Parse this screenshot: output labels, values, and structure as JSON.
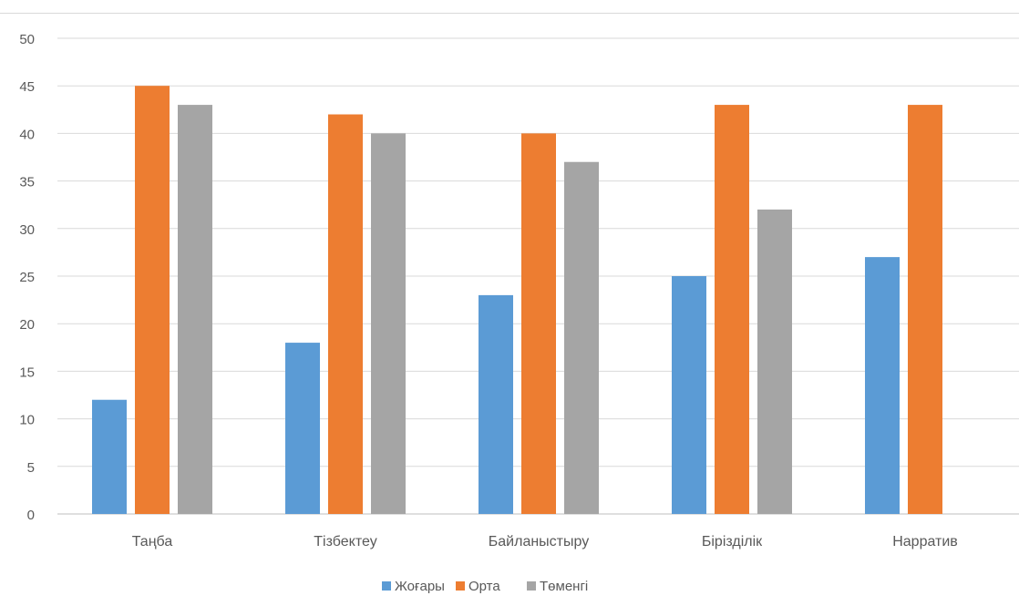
{
  "chart_data": {
    "type": "bar",
    "title": "",
    "xlabel": "",
    "ylabel": "",
    "categories": [
      "Таңба",
      "Тізбектеу",
      "Байланыстыру",
      "Біріздiлiк",
      "Нарратив"
    ],
    "series": [
      {
        "name": "Жоғары",
        "color": "#5B9BD5",
        "values": [
          12,
          18,
          23,
          25,
          27
        ]
      },
      {
        "name": "Орта",
        "color": "#ED7D31",
        "values": [
          45,
          42,
          40,
          43,
          43
        ]
      },
      {
        "name": "Төменгі",
        "color": "#A5A5A5",
        "values": [
          43,
          40,
          37,
          32,
          null
        ]
      }
    ],
    "ylim": [
      0,
      50
    ],
    "yticks": [
      0,
      5,
      10,
      15,
      20,
      25,
      30,
      35,
      40,
      45,
      50
    ],
    "grid": true,
    "legend_position": "bottom"
  }
}
